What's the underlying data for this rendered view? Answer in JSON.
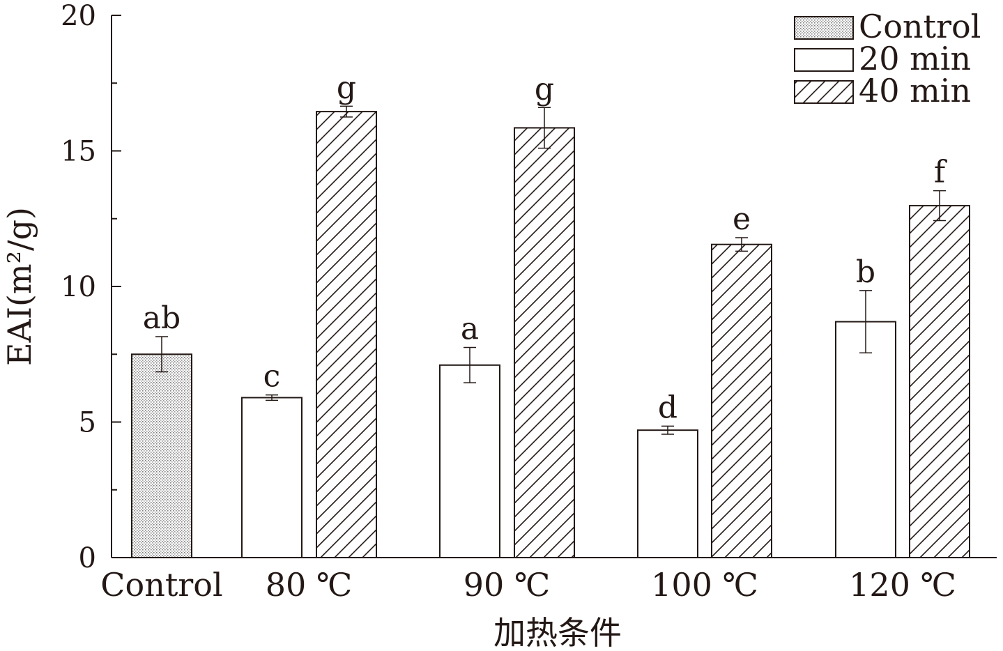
{
  "chart_data": {
    "type": "bar",
    "xlabel": "加热条件",
    "ylabel": "EAI(m²/g)",
    "ylim": [
      0,
      20
    ],
    "yticks": [
      0,
      5,
      10,
      15,
      20
    ],
    "grid": false,
    "legend_position": "top-right",
    "categories": [
      "Control",
      "80 ℃",
      "90 ℃",
      "100 ℃",
      "120 ℃"
    ],
    "series": [
      {
        "name": "Control",
        "pattern": "dots",
        "values": [
          7.5,
          null,
          null,
          null,
          null
        ],
        "errors": [
          0.65,
          null,
          null,
          null,
          null
        ],
        "labels": [
          "ab",
          null,
          null,
          null,
          null
        ]
      },
      {
        "name": "20 min",
        "pattern": "none",
        "values": [
          null,
          5.9,
          7.1,
          4.7,
          8.7
        ],
        "errors": [
          null,
          0.1,
          0.65,
          0.15,
          1.15
        ],
        "labels": [
          null,
          "c",
          "a",
          "d",
          "b"
        ]
      },
      {
        "name": "40 min",
        "pattern": "hatch",
        "values": [
          null,
          16.45,
          15.85,
          11.55,
          12.98
        ],
        "errors": [
          null,
          0.2,
          0.75,
          0.25,
          0.55
        ],
        "labels": [
          null,
          "g",
          "g",
          "e",
          "f"
        ]
      }
    ],
    "colors": {
      "ink": "#231815",
      "dots": "#8a8a8a",
      "background": "#ffffff"
    }
  }
}
